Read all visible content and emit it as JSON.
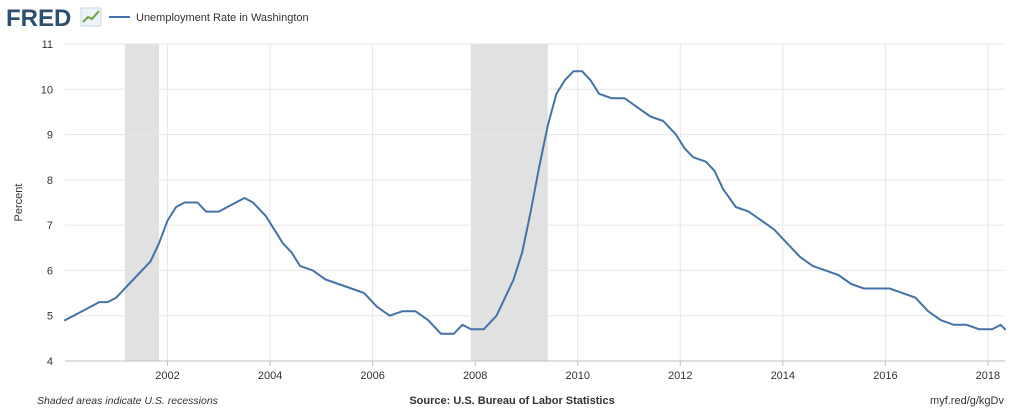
{
  "header": {
    "logo_text": "FRED",
    "legend_label": "Unemployment Rate in Washington"
  },
  "footer": {
    "left_note": "Shaded areas indicate U.S. recessions",
    "source": "Source: U.S. Bureau of Labor Statistics",
    "url": "myf.red/g/kgDv"
  },
  "colors": {
    "series": "#4572a7",
    "recession": "#e1e1e1",
    "grid": "#e6e6e6",
    "text": "#333333",
    "logo": "#2f4f6f"
  },
  "chart_data": {
    "type": "line",
    "title": "",
    "ylabel": "Percent",
    "xlabel": "",
    "ylim": [
      4,
      11
    ],
    "xlim": [
      "2000-01",
      "2018-05"
    ],
    "y_ticks": [
      4,
      5,
      6,
      7,
      8,
      9,
      10,
      11
    ],
    "x_tick_labels": [
      "2002",
      "2004",
      "2006",
      "2008",
      "2010",
      "2012",
      "2014",
      "2016",
      "2018"
    ],
    "grid": true,
    "legend_position": "top-left",
    "recessions": [
      {
        "start": "2001-03",
        "end": "2001-11"
      },
      {
        "start": "2007-12",
        "end": "2009-06"
      }
    ],
    "series": [
      {
        "name": "Unemployment Rate in Washington",
        "points": [
          [
            "2000-01",
            4.9
          ],
          [
            "2000-03",
            5.0
          ],
          [
            "2000-05",
            5.1
          ],
          [
            "2000-07",
            5.2
          ],
          [
            "2000-09",
            5.3
          ],
          [
            "2000-11",
            5.3
          ],
          [
            "2001-01",
            5.4
          ],
          [
            "2001-03",
            5.6
          ],
          [
            "2001-06",
            5.9
          ],
          [
            "2001-09",
            6.2
          ],
          [
            "2001-11",
            6.6
          ],
          [
            "2002-01",
            7.1
          ],
          [
            "2002-03",
            7.4
          ],
          [
            "2002-05",
            7.5
          ],
          [
            "2002-08",
            7.5
          ],
          [
            "2002-10",
            7.3
          ],
          [
            "2003-01",
            7.3
          ],
          [
            "2003-03",
            7.4
          ],
          [
            "2003-05",
            7.5
          ],
          [
            "2003-07",
            7.6
          ],
          [
            "2003-09",
            7.5
          ],
          [
            "2003-12",
            7.2
          ],
          [
            "2004-02",
            6.9
          ],
          [
            "2004-04",
            6.6
          ],
          [
            "2004-06",
            6.4
          ],
          [
            "2004-08",
            6.1
          ],
          [
            "2004-11",
            6.0
          ],
          [
            "2005-02",
            5.8
          ],
          [
            "2005-05",
            5.7
          ],
          [
            "2005-08",
            5.6
          ],
          [
            "2005-11",
            5.5
          ],
          [
            "2006-02",
            5.2
          ],
          [
            "2006-05",
            5.0
          ],
          [
            "2006-08",
            5.1
          ],
          [
            "2006-11",
            5.1
          ],
          [
            "2007-02",
            4.9
          ],
          [
            "2007-05",
            4.6
          ],
          [
            "2007-08",
            4.6
          ],
          [
            "2007-10",
            4.8
          ],
          [
            "2007-12",
            4.7
          ],
          [
            "2008-03",
            4.7
          ],
          [
            "2008-06",
            5.0
          ],
          [
            "2008-08",
            5.4
          ],
          [
            "2008-10",
            5.8
          ],
          [
            "2008-12",
            6.4
          ],
          [
            "2009-02",
            7.3
          ],
          [
            "2009-04",
            8.3
          ],
          [
            "2009-06",
            9.2
          ],
          [
            "2009-08",
            9.9
          ],
          [
            "2009-10",
            10.2
          ],
          [
            "2009-12",
            10.4
          ],
          [
            "2010-02",
            10.4
          ],
          [
            "2010-04",
            10.2
          ],
          [
            "2010-06",
            9.9
          ],
          [
            "2010-09",
            9.8
          ],
          [
            "2010-12",
            9.8
          ],
          [
            "2011-03",
            9.6
          ],
          [
            "2011-06",
            9.4
          ],
          [
            "2011-09",
            9.3
          ],
          [
            "2011-12",
            9.0
          ],
          [
            "2012-02",
            8.7
          ],
          [
            "2012-04",
            8.5
          ],
          [
            "2012-07",
            8.4
          ],
          [
            "2012-09",
            8.2
          ],
          [
            "2012-11",
            7.8
          ],
          [
            "2013-02",
            7.4
          ],
          [
            "2013-05",
            7.3
          ],
          [
            "2013-08",
            7.1
          ],
          [
            "2013-11",
            6.9
          ],
          [
            "2014-02",
            6.6
          ],
          [
            "2014-05",
            6.3
          ],
          [
            "2014-08",
            6.1
          ],
          [
            "2014-11",
            6.0
          ],
          [
            "2015-02",
            5.9
          ],
          [
            "2015-05",
            5.7
          ],
          [
            "2015-08",
            5.6
          ],
          [
            "2015-11",
            5.6
          ],
          [
            "2016-02",
            5.6
          ],
          [
            "2016-05",
            5.5
          ],
          [
            "2016-08",
            5.4
          ],
          [
            "2016-11",
            5.1
          ],
          [
            "2017-02",
            4.9
          ],
          [
            "2017-05",
            4.8
          ],
          [
            "2017-08",
            4.8
          ],
          [
            "2017-11",
            4.7
          ],
          [
            "2018-02",
            4.7
          ],
          [
            "2018-04",
            4.8
          ],
          [
            "2018-05",
            4.7
          ]
        ]
      }
    ]
  }
}
